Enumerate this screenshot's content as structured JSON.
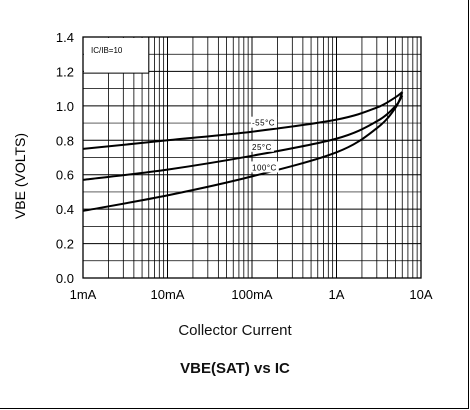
{
  "chart_data": {
    "type": "line",
    "title": "VBE(SAT) vs IC",
    "xlabel": "Collector Current",
    "ylabel": "VBE (VOLTS)",
    "x_scale": "log",
    "xlim": [
      "1mA",
      "10A"
    ],
    "ylim": [
      0.0,
      1.4
    ],
    "grid": true,
    "x_ticks": [
      "1mA",
      "10mA",
      "100mA",
      "1A",
      "10A"
    ],
    "y_ticks": [
      "0.0",
      "0.2",
      "0.4",
      "0.6",
      "0.8",
      "1.0",
      "1.2",
      "1.4"
    ],
    "annotation": "IC/IB=10",
    "series": [
      {
        "name": "-55°C",
        "x": [
          "1mA",
          "10mA",
          "100mA",
          "1A",
          "3A",
          "5A",
          "6A"
        ],
        "y": [
          0.75,
          0.8,
          0.85,
          0.92,
          0.99,
          1.05,
          1.08
        ]
      },
      {
        "name": "25°C",
        "x": [
          "1mA",
          "10mA",
          "100mA",
          "1A",
          "3A",
          "5A",
          "6A"
        ],
        "y": [
          0.57,
          0.63,
          0.71,
          0.81,
          0.91,
          1.0,
          1.06
        ]
      },
      {
        "name": "100°C",
        "x": [
          "1mA",
          "10mA",
          "100mA",
          "1A",
          "3A",
          "5A",
          "6A"
        ],
        "y": [
          0.39,
          0.48,
          0.59,
          0.73,
          0.87,
          0.99,
          1.08
        ]
      }
    ]
  }
}
